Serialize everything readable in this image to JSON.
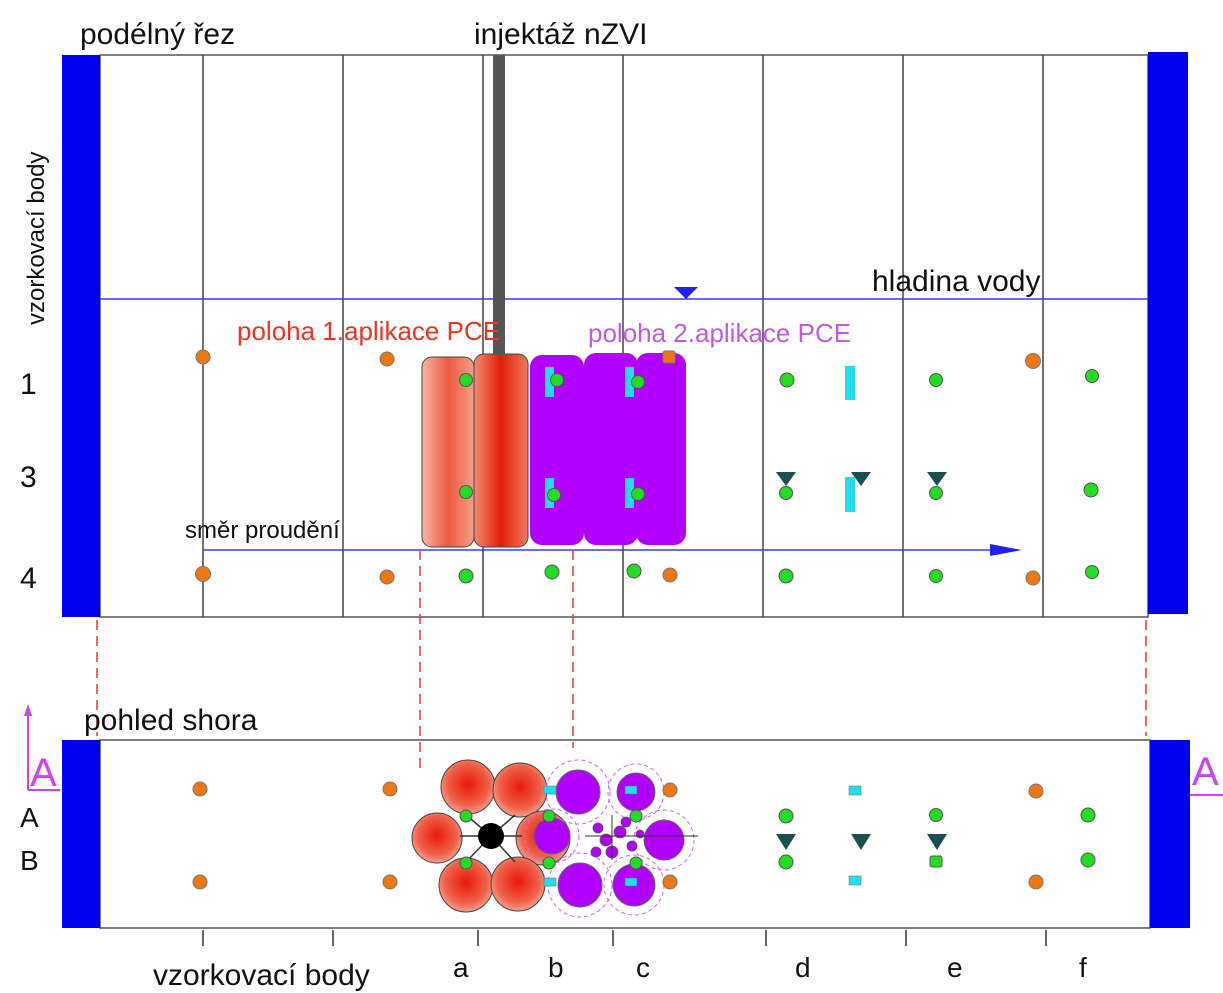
{
  "labels": {
    "section_title": "podélný řez",
    "injection": "injektáž nZVI",
    "side_axis": "vzorkovací body",
    "water_level": "hladina vody",
    "pce1": "poloha 1.aplikace PCE",
    "pce2": "poloha 2.aplikace PCE",
    "flow": "směr proudění",
    "top_view": "pohled shora",
    "bottom_axis": "vzorkovací body",
    "section_marker_left": "A",
    "section_marker_right": "A"
  },
  "row_labels": [
    "1",
    "3",
    "4"
  ],
  "plan_row_labels": [
    "A",
    "B"
  ],
  "column_labels": [
    "a",
    "b",
    "c",
    "d",
    "e",
    "f"
  ],
  "colors": {
    "wall": "#0000ee",
    "water_line": "#3a3af0",
    "grid": "#444444",
    "pce1": "#e83a1a",
    "pce2": "#b200ff",
    "pce2_text": "#c15adf",
    "pce1_text": "#ee3322",
    "point_green": "#22dd22",
    "point_orange": "#ee7711",
    "point_cyan": "#22ddee",
    "triangle": "#1a4f4f",
    "marker": "#cc44ee",
    "guide_red": "#ee3333"
  }
}
